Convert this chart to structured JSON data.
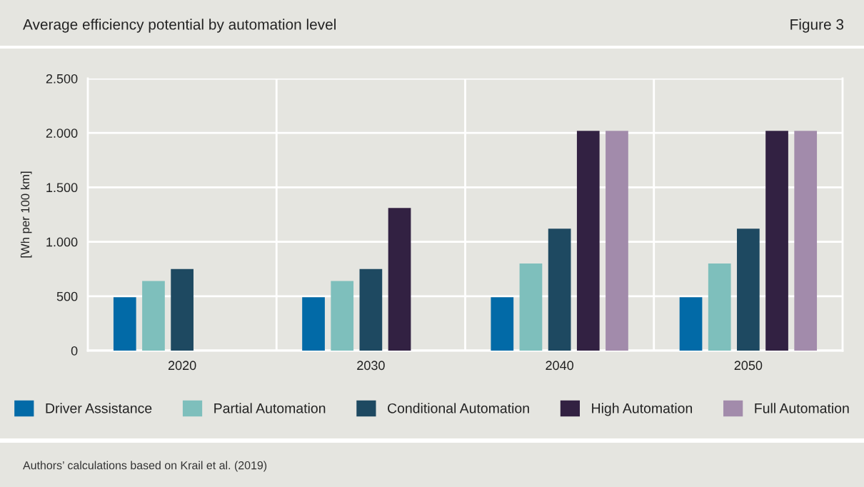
{
  "chart_data": {
    "type": "bar",
    "title": "Average efficiency potential by automation level",
    "ylabel": "[Wh per 100 km]",
    "annotations": [
      "Figure 3",
      "Authors’ calculations based on Krail et al. (2019)"
    ],
    "categories": [
      "2020",
      "2030",
      "2040",
      "2050"
    ],
    "series": [
      {
        "name": "Driver Assistance",
        "color": "#026aa7",
        "values": [
          490,
          490,
          490,
          490
        ]
      },
      {
        "name": "Partial Automation",
        "color": "#7ebfbc",
        "values": [
          640,
          640,
          800,
          800
        ]
      },
      {
        "name": "Conditional Automation",
        "color": "#1e4961",
        "values": [
          750,
          750,
          1120,
          1120
        ]
      },
      {
        "name": "High Automation",
        "color": "#322142",
        "values": [
          null,
          1310,
          2020,
          2020
        ]
      },
      {
        "name": "Full Automation",
        "color": "#a28bab",
        "values": [
          null,
          null,
          2020,
          2020
        ]
      }
    ],
    "ylim": [
      0,
      2500
    ],
    "yticks": [
      0,
      500,
      {
        "value": 1000,
        "label": "1.000"
      },
      {
        "value": 1500,
        "label": "1.500"
      },
      {
        "value": 2000,
        "label": "2.000"
      },
      {
        "value": 2500,
        "label": "2.500"
      }
    ],
    "grid": true,
    "legend": "bottom"
  }
}
